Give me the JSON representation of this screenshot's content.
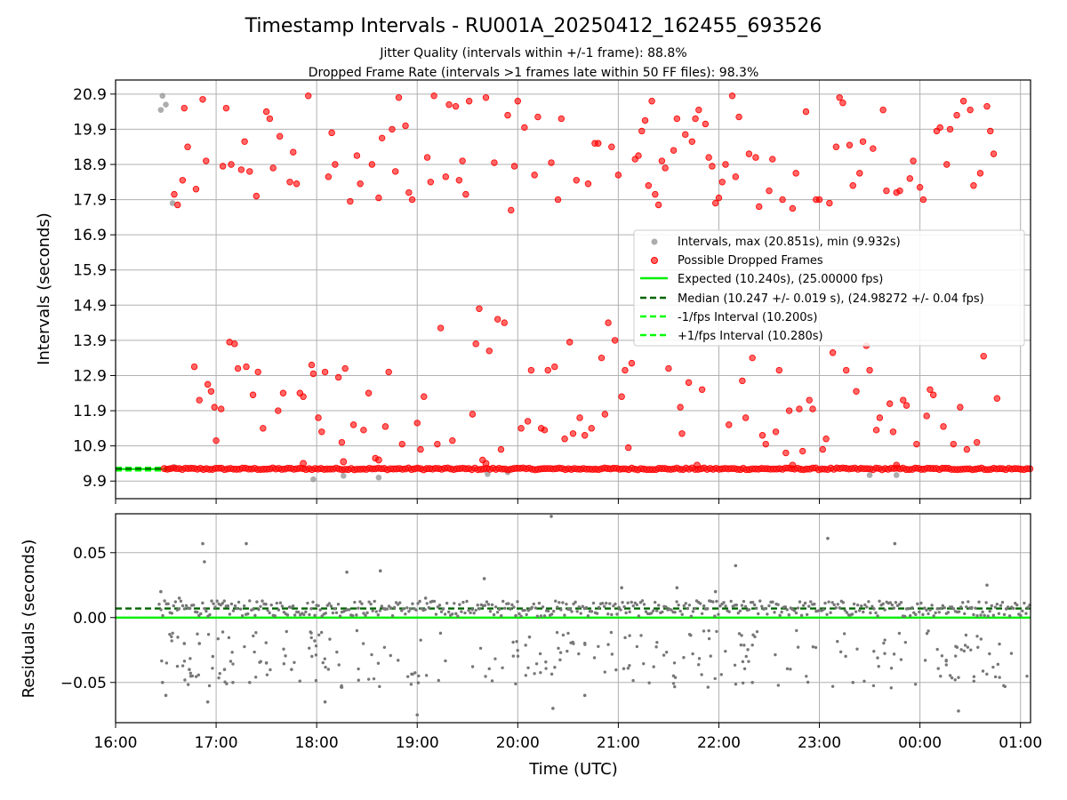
{
  "figure": {
    "title": "Timestamp Intervals - RU001A_20250412_162455_693526",
    "subtitle_1": "Jitter Quality (intervals within +/-1 frame): 88.8%",
    "subtitle_2": "Dropped Frame Rate (intervals >1 frames late within 50 FF files): 98.3%",
    "xlabel": "Time (UTC)"
  },
  "colors": {
    "intervals": "#999999",
    "dropped": "#ff0000",
    "expected": "#00ee00",
    "median": "#006400",
    "fps_bounds": "#00ff00",
    "residuals": "#777777",
    "grid": "#b0b0b0"
  },
  "chart_data": [
    {
      "type": "scatter",
      "ylabel": "Intervals (seconds)",
      "xlim": [
        "16:00",
        "01:06"
      ],
      "ylim": [
        9.4,
        21.3
      ],
      "x_tick_labels": [
        "16:00",
        "17:00",
        "18:00",
        "19:00",
        "20:00",
        "21:00",
        "22:00",
        "23:00",
        "00:00",
        "01:00"
      ],
      "y_tick_labels": [
        "9.9",
        "10.9",
        "11.9",
        "12.9",
        "13.9",
        "14.9",
        "15.9",
        "16.9",
        "17.9",
        "18.9",
        "19.9",
        "20.9"
      ],
      "grid": true,
      "legend_placement": "center-right",
      "legend": [
        "Intervals, max (20.851s), min (9.932s)",
        "Possible Dropped Frames",
        "Expected (10.240s), (25.00000 fps)",
        "Median (10.247 +/- 0.019 s), (24.98272 +/- 0.04 fps)",
        "-1/fps Interval (10.200s)",
        "+1/fps Interval (10.280s)"
      ],
      "expected": 10.24,
      "median": 10.247,
      "minus_1_fps": 10.2,
      "plus_1_fps": 10.28,
      "baseline_range": [
        "16:29",
        "01:06"
      ],
      "baseline_value": 10.247,
      "intervals_points": [
        [
          "16:27",
          20.45
        ],
        [
          "16:28",
          20.85
        ],
        [
          "16:30",
          20.6
        ],
        [
          "16:34",
          17.8
        ],
        [
          "16:32",
          10.25
        ],
        [
          "16:35",
          10.3
        ],
        [
          "17:58",
          9.95
        ],
        [
          "18:16",
          10.05
        ],
        [
          "18:37",
          10.0
        ],
        [
          "19:42",
          10.1
        ],
        [
          "19:54",
          10.15
        ],
        [
          "23:30",
          10.07
        ],
        [
          "23:46",
          10.07
        ]
      ],
      "dropped_points": [
        [
          "16:35",
          18.05
        ],
        [
          "16:37",
          17.75
        ],
        [
          "16:40",
          18.45
        ],
        [
          "16:41",
          20.5
        ],
        [
          "16:43",
          19.4
        ],
        [
          "16:47",
          13.15
        ],
        [
          "16:48",
          18.2
        ],
        [
          "16:50",
          12.2
        ],
        [
          "16:52",
          20.75
        ],
        [
          "16:54",
          19.0
        ],
        [
          "16:55",
          12.65
        ],
        [
          "16:57",
          12.45
        ],
        [
          "16:59",
          12.0
        ],
        [
          "17:00",
          11.05
        ],
        [
          "17:03",
          11.95
        ],
        [
          "17:04",
          18.85
        ],
        [
          "17:06",
          20.5
        ],
        [
          "17:08",
          13.85
        ],
        [
          "17:09",
          18.9
        ],
        [
          "17:11",
          13.8
        ],
        [
          "17:13",
          13.1
        ],
        [
          "17:15",
          18.75
        ],
        [
          "17:17",
          19.55
        ],
        [
          "17:18",
          13.15
        ],
        [
          "17:20",
          18.7
        ],
        [
          "17:22",
          12.35
        ],
        [
          "17:24",
          18.0
        ],
        [
          "17:25",
          13.0
        ],
        [
          "17:28",
          11.4
        ],
        [
          "17:30",
          20.4
        ],
        [
          "17:32",
          20.2
        ],
        [
          "17:34",
          18.8
        ],
        [
          "17:37",
          11.9
        ],
        [
          "17:38",
          19.7
        ],
        [
          "17:40",
          12.4
        ],
        [
          "17:44",
          18.4
        ],
        [
          "17:46",
          19.25
        ],
        [
          "17:48",
          18.35
        ],
        [
          "17:50",
          12.4
        ],
        [
          "17:52",
          12.3
        ],
        [
          "17:55",
          20.85
        ],
        [
          "17:57",
          13.2
        ],
        [
          "17:58",
          12.95
        ],
        [
          "18:01",
          11.7
        ],
        [
          "18:03",
          11.3
        ],
        [
          "18:05",
          13.0
        ],
        [
          "18:07",
          18.55
        ],
        [
          "18:09",
          19.8
        ],
        [
          "18:11",
          18.9
        ],
        [
          "18:13",
          12.85
        ],
        [
          "18:15",
          11.0
        ],
        [
          "18:17",
          13.1
        ],
        [
          "18:20",
          17.85
        ],
        [
          "18:22",
          11.5
        ],
        [
          "18:24",
          19.15
        ],
        [
          "18:26",
          18.35
        ],
        [
          "18:28",
          11.35
        ],
        [
          "18:31",
          12.4
        ],
        [
          "18:33",
          18.9
        ],
        [
          "18:35",
          10.55
        ],
        [
          "18:37",
          17.95
        ],
        [
          "18:39",
          19.65
        ],
        [
          "18:41",
          11.45
        ],
        [
          "18:43",
          13.0
        ],
        [
          "18:45",
          19.9
        ],
        [
          "18:47",
          18.7
        ],
        [
          "18:49",
          20.8
        ],
        [
          "18:51",
          10.95
        ],
        [
          "18:53",
          20.0
        ],
        [
          "18:55",
          18.1
        ],
        [
          "18:57",
          17.9
        ],
        [
          "19:00",
          11.55
        ],
        [
          "19:02",
          10.8
        ],
        [
          "19:04",
          12.3
        ],
        [
          "19:06",
          19.1
        ],
        [
          "19:08",
          18.4
        ],
        [
          "19:10",
          20.85
        ],
        [
          "19:12",
          10.95
        ],
        [
          "19:14",
          14.25
        ],
        [
          "19:17",
          18.55
        ],
        [
          "19:19",
          20.6
        ],
        [
          "19:21",
          11.05
        ],
        [
          "19:23",
          20.55
        ],
        [
          "19:25",
          18.45
        ],
        [
          "19:27",
          19.0
        ],
        [
          "19:29",
          18.05
        ],
        [
          "19:31",
          20.7
        ],
        [
          "19:33",
          11.8
        ],
        [
          "19:35",
          13.8
        ],
        [
          "19:37",
          14.8
        ],
        [
          "19:39",
          10.5
        ],
        [
          "19:41",
          20.8
        ],
        [
          "19:43",
          13.6
        ],
        [
          "19:46",
          18.95
        ],
        [
          "19:48",
          14.5
        ],
        [
          "19:50",
          10.8
        ],
        [
          "19:52",
          14.4
        ],
        [
          "19:54",
          20.3
        ],
        [
          "19:56",
          17.6
        ],
        [
          "19:58",
          18.85
        ],
        [
          "20:00",
          20.7
        ],
        [
          "20:02",
          11.4
        ],
        [
          "20:04",
          19.95
        ],
        [
          "20:06",
          11.6
        ],
        [
          "20:08",
          13.05
        ],
        [
          "20:10",
          18.6
        ],
        [
          "20:12",
          20.25
        ],
        [
          "20:14",
          11.4
        ],
        [
          "20:16",
          11.35
        ],
        [
          "20:18",
          13.05
        ],
        [
          "20:20",
          18.95
        ],
        [
          "20:22",
          13.15
        ],
        [
          "20:24",
          17.9
        ],
        [
          "20:26",
          20.2
        ],
        [
          "20:28",
          11.1
        ],
        [
          "20:31",
          13.85
        ],
        [
          "20:33",
          11.25
        ],
        [
          "20:35",
          18.45
        ],
        [
          "20:37",
          11.7
        ],
        [
          "20:40",
          11.2
        ],
        [
          "20:42",
          18.35
        ],
        [
          "20:44",
          11.4
        ],
        [
          "20:46",
          19.5
        ],
        [
          "20:48",
          19.5
        ],
        [
          "20:50",
          13.4
        ],
        [
          "20:52",
          11.8
        ],
        [
          "20:54",
          14.4
        ],
        [
          "20:56",
          19.4
        ],
        [
          "20:58",
          13.9
        ],
        [
          "21:00",
          18.6
        ],
        [
          "21:02",
          12.3
        ],
        [
          "21:04",
          13.05
        ],
        [
          "21:06",
          10.85
        ],
        [
          "21:08",
          13.25
        ],
        [
          "21:10",
          19.05
        ],
        [
          "21:12",
          19.15
        ],
        [
          "21:14",
          19.85
        ],
        [
          "21:16",
          20.15
        ],
        [
          "21:18",
          18.3
        ],
        [
          "21:20",
          20.7
        ],
        [
          "21:22",
          18.05
        ],
        [
          "21:24",
          17.75
        ],
        [
          "21:26",
          19.0
        ],
        [
          "21:28",
          18.8
        ],
        [
          "21:30",
          13.1
        ],
        [
          "21:33",
          19.3
        ],
        [
          "21:35",
          20.2
        ],
        [
          "21:37",
          12.0
        ],
        [
          "21:38",
          11.25
        ],
        [
          "21:40",
          19.75
        ],
        [
          "21:42",
          12.7
        ],
        [
          "21:44",
          19.55
        ],
        [
          "21:46",
          20.2
        ],
        [
          "21:48",
          20.45
        ],
        [
          "21:50",
          12.5
        ],
        [
          "21:52",
          20.05
        ],
        [
          "21:54",
          19.1
        ],
        [
          "21:56",
          18.85
        ],
        [
          "21:58",
          17.8
        ],
        [
          "22:00",
          17.95
        ],
        [
          "22:02",
          18.4
        ],
        [
          "22:04",
          18.9
        ],
        [
          "22:06",
          11.5
        ],
        [
          "22:08",
          20.85
        ],
        [
          "22:10",
          18.55
        ],
        [
          "22:12",
          20.25
        ],
        [
          "22:14",
          12.75
        ],
        [
          "22:16",
          11.7
        ],
        [
          "22:18",
          19.2
        ],
        [
          "22:20",
          13.4
        ],
        [
          "22:22",
          19.1
        ],
        [
          "22:24",
          17.7
        ],
        [
          "22:26",
          11.2
        ],
        [
          "22:28",
          10.95
        ],
        [
          "22:30",
          18.15
        ],
        [
          "22:32",
          19.05
        ],
        [
          "22:34",
          11.3
        ],
        [
          "22:36",
          13.05
        ],
        [
          "22:38",
          17.9
        ],
        [
          "22:40",
          10.7
        ],
        [
          "22:42",
          11.9
        ],
        [
          "22:44",
          17.65
        ],
        [
          "22:46",
          18.65
        ],
        [
          "22:48",
          11.95
        ],
        [
          "22:50",
          10.75
        ],
        [
          "22:52",
          20.4
        ],
        [
          "22:54",
          12.2
        ],
        [
          "22:56",
          11.95
        ],
        [
          "22:58",
          17.9
        ],
        [
          "23:00",
          17.9
        ],
        [
          "23:02",
          10.8
        ],
        [
          "23:04",
          11.1
        ],
        [
          "23:06",
          17.8
        ],
        [
          "23:08",
          13.55
        ],
        [
          "23:10",
          19.4
        ],
        [
          "23:12",
          20.8
        ],
        [
          "23:14",
          20.65
        ],
        [
          "23:16",
          13.05
        ],
        [
          "23:18",
          19.45
        ],
        [
          "23:20",
          18.3
        ],
        [
          "23:22",
          12.45
        ],
        [
          "23:24",
          18.65
        ],
        [
          "23:26",
          19.55
        ],
        [
          "23:28",
          13.75
        ],
        [
          "23:30",
          13.05
        ],
        [
          "23:32",
          19.35
        ],
        [
          "23:34",
          11.35
        ],
        [
          "23:36",
          11.7
        ],
        [
          "23:38",
          20.45
        ],
        [
          "23:40",
          18.15
        ],
        [
          "23:42",
          12.1
        ],
        [
          "23:44",
          11.3
        ],
        [
          "23:46",
          18.1
        ],
        [
          "23:48",
          18.15
        ],
        [
          "23:50",
          12.2
        ],
        [
          "23:52",
          12.05
        ],
        [
          "23:54",
          18.5
        ],
        [
          "23:56",
          19.0
        ],
        [
          "23:58",
          10.95
        ],
        [
          "00:00",
          18.25
        ],
        [
          "00:02",
          17.9
        ],
        [
          "00:04",
          11.75
        ],
        [
          "00:06",
          12.5
        ],
        [
          "00:08",
          12.35
        ],
        [
          "00:10",
          19.85
        ],
        [
          "00:12",
          19.95
        ],
        [
          "00:14",
          11.45
        ],
        [
          "00:16",
          18.9
        ],
        [
          "00:18",
          19.9
        ],
        [
          "00:20",
          10.95
        ],
        [
          "00:22",
          20.3
        ],
        [
          "00:24",
          12.0
        ],
        [
          "00:26",
          20.7
        ],
        [
          "00:28",
          10.8
        ],
        [
          "00:30",
          20.45
        ],
        [
          "00:32",
          18.3
        ],
        [
          "00:34",
          11.0
        ],
        [
          "00:36",
          18.65
        ],
        [
          "00:38",
          13.45
        ],
        [
          "00:40",
          20.55
        ],
        [
          "00:42",
          19.85
        ],
        [
          "00:44",
          19.2
        ],
        [
          "00:46",
          12.25
        ]
      ]
    },
    {
      "type": "scatter",
      "ylabel": "Residuals (seconds)",
      "xlabel": "Time (UTC)",
      "xlim": [
        "16:00",
        "01:06"
      ],
      "ylim": [
        -0.081,
        0.08
      ],
      "x_tick_labels": [
        "16:00",
        "17:00",
        "18:00",
        "19:00",
        "20:00",
        "21:00",
        "22:00",
        "23:00",
        "00:00",
        "01:00"
      ],
      "y_tick_labels": [
        "0.05",
        "0.00",
        "−0.05"
      ],
      "grid": true,
      "zero_line": 0.0,
      "median_offset": 0.007,
      "residual_outliers": [
        [
          "16:27",
          0.02
        ],
        [
          "16:28",
          -0.05
        ],
        [
          "16:30",
          -0.06
        ],
        [
          "16:38",
          0.015
        ],
        [
          "16:41",
          -0.02
        ],
        [
          "16:44",
          -0.04
        ],
        [
          "16:50",
          -0.02
        ],
        [
          "16:52",
          0.057
        ],
        [
          "16:53",
          0.043
        ],
        [
          "16:55",
          -0.065
        ],
        [
          "16:58",
          -0.03
        ],
        [
          "17:05",
          -0.04
        ],
        [
          "17:10",
          -0.05
        ],
        [
          "17:18",
          0.057
        ],
        [
          "17:20",
          -0.05
        ],
        [
          "17:30",
          -0.035
        ],
        [
          "17:45",
          -0.04
        ],
        [
          "18:05",
          -0.065
        ],
        [
          "18:18",
          0.035
        ],
        [
          "18:38",
          0.036
        ],
        [
          "19:00",
          -0.075
        ],
        [
          "19:05",
          0.015
        ],
        [
          "19:40",
          0.03
        ],
        [
          "20:07",
          -0.015
        ],
        [
          "20:20",
          0.078
        ],
        [
          "20:21",
          -0.07
        ],
        [
          "20:40",
          -0.06
        ],
        [
          "21:02",
          0.023
        ],
        [
          "21:35",
          0.023
        ],
        [
          "21:58",
          0.02
        ],
        [
          "22:10",
          0.04
        ],
        [
          "22:20",
          -0.05
        ],
        [
          "23:05",
          0.061
        ],
        [
          "23:20",
          -0.05
        ],
        [
          "23:45",
          0.057
        ],
        [
          "00:23",
          -0.072
        ],
        [
          "00:40",
          0.025
        ]
      ]
    }
  ]
}
